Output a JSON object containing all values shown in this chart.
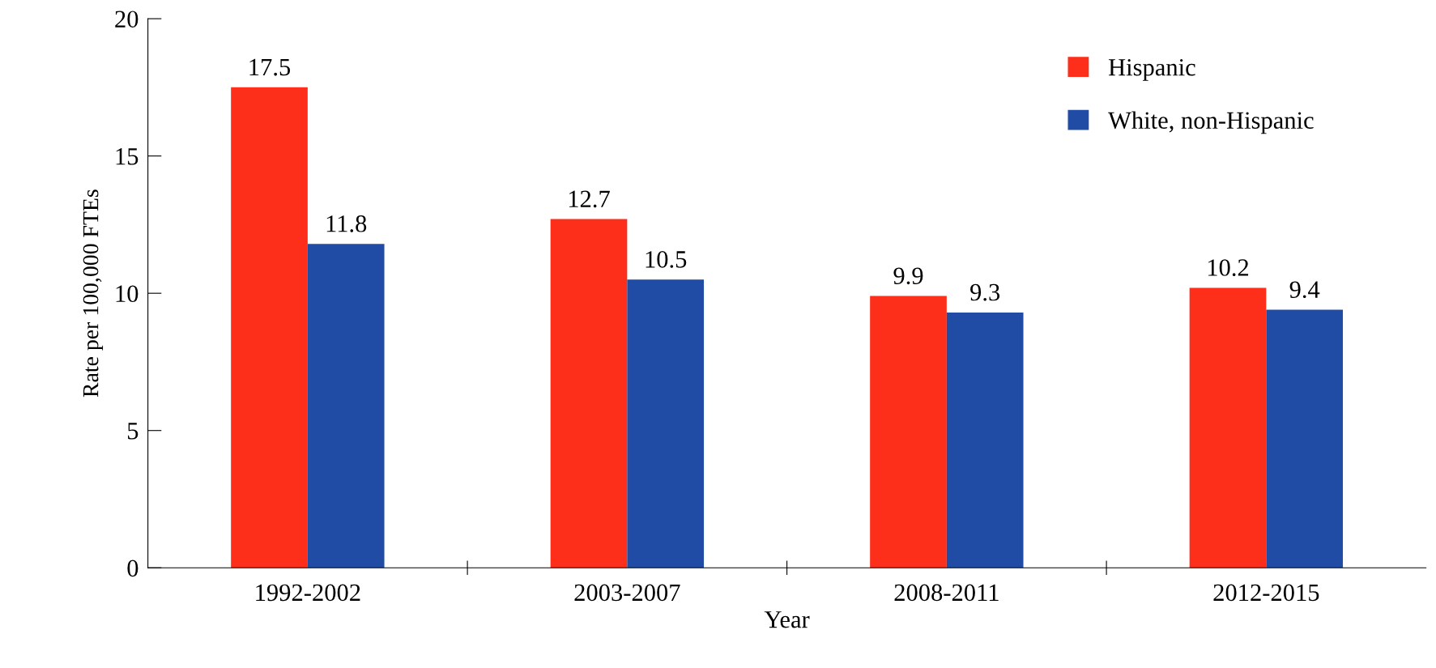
{
  "chart_data": {
    "type": "bar",
    "xlabel": "Year",
    "ylabel": "Rate per 100,000 FTEs",
    "categories": [
      "1992-2002",
      "2003-2007",
      "2008-2011",
      "2012-2015"
    ],
    "series": [
      {
        "name": "Hispanic",
        "color": "#fd2e1a",
        "values": [
          17.5,
          12.7,
          9.9,
          10.2
        ]
      },
      {
        "name": "White, non-Hispanic",
        "color": "#214ca5",
        "values": [
          11.8,
          10.5,
          9.3,
          9.4
        ]
      }
    ],
    "ylim": [
      0,
      20
    ],
    "yticks": [
      0,
      5,
      10,
      15,
      20
    ],
    "grid": false,
    "legend": "top right",
    "data_labels": true
  }
}
